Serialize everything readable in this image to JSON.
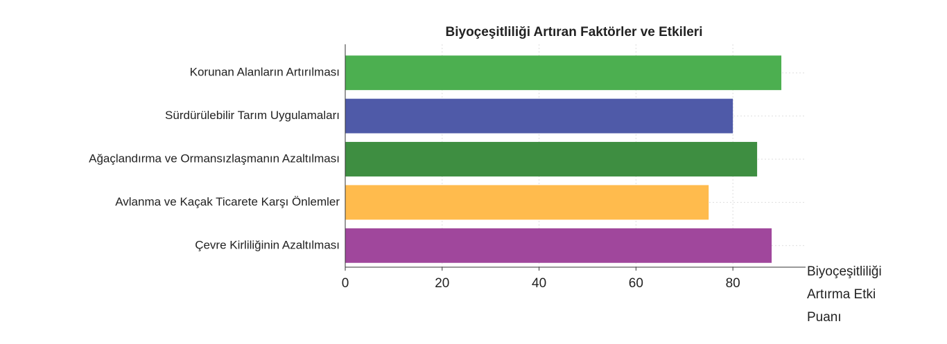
{
  "chart_data": {
    "type": "barh",
    "title": "Biyoçeşitliliği Artıran Faktörler ve Etkileri",
    "x_label": "Biyoçeşitliliği Artırma Etki Puanı",
    "categories": [
      "Korunan Alanların Artırılması",
      "Sürdürülebilir Tarım Uygulamaları",
      "Ağaçlandırma ve Ormansızlaşmanın Azaltılması",
      "Avlanma ve Kaçak Ticarete Karşı Önlemler",
      "Çevre Kirliliğinin Azaltılması"
    ],
    "values": [
      90,
      80,
      85,
      75,
      88
    ],
    "colors": [
      "#4caf50",
      "#4f5aa8",
      "#3e8e41",
      "#ffbb4d",
      "#a0479c"
    ],
    "xlim": [
      0,
      95
    ],
    "xticks": [
      0,
      20,
      40,
      60,
      80
    ],
    "grid": true
  }
}
